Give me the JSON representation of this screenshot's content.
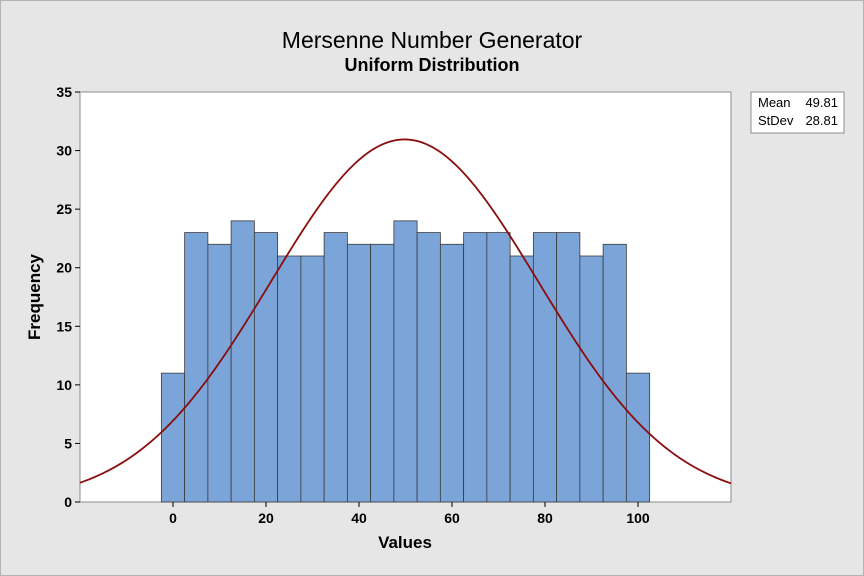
{
  "chart_data": {
    "type": "bar",
    "title": "Mersenne Number Generator",
    "subtitle": "Uniform Distribution",
    "xlabel": "Values",
    "ylabel": "Frequency",
    "xlim": [
      -20,
      120
    ],
    "ylim": [
      0,
      35
    ],
    "xticks": [
      0,
      20,
      40,
      60,
      80,
      100
    ],
    "yticks": [
      0,
      5,
      10,
      15,
      20,
      25,
      30,
      35
    ],
    "bin_width": 5,
    "bins": [
      {
        "start": -2.5,
        "end": 2.5,
        "count": 11
      },
      {
        "start": 2.5,
        "end": 7.5,
        "count": 23
      },
      {
        "start": 7.5,
        "end": 12.5,
        "count": 22
      },
      {
        "start": 12.5,
        "end": 17.5,
        "count": 24
      },
      {
        "start": 17.5,
        "end": 22.5,
        "count": 23
      },
      {
        "start": 22.5,
        "end": 27.5,
        "count": 21
      },
      {
        "start": 27.5,
        "end": 32.5,
        "count": 21
      },
      {
        "start": 32.5,
        "end": 37.5,
        "count": 23
      },
      {
        "start": 37.5,
        "end": 42.5,
        "count": 22
      },
      {
        "start": 42.5,
        "end": 47.5,
        "count": 22
      },
      {
        "start": 47.5,
        "end": 52.5,
        "count": 24
      },
      {
        "start": 52.5,
        "end": 57.5,
        "count": 23
      },
      {
        "start": 57.5,
        "end": 62.5,
        "count": 22
      },
      {
        "start": 62.5,
        "end": 67.5,
        "count": 23
      },
      {
        "start": 67.5,
        "end": 72.5,
        "count": 23
      },
      {
        "start": 72.5,
        "end": 77.5,
        "count": 21
      },
      {
        "start": 77.5,
        "end": 82.5,
        "count": 23
      },
      {
        "start": 82.5,
        "end": 87.5,
        "count": 23
      },
      {
        "start": 87.5,
        "end": 92.5,
        "count": 21
      },
      {
        "start": 92.5,
        "end": 97.5,
        "count": 22
      },
      {
        "start": 97.5,
        "end": 102.5,
        "count": 11
      }
    ],
    "fit_curve": {
      "type": "normal",
      "mean": 49.81,
      "stdev": 28.81,
      "peak": 30.95
    },
    "stats_box": {
      "position": "top-right",
      "mean_label": "Mean",
      "mean_value": "49.81",
      "stdev_label": "StDev",
      "stdev_value": "28.81"
    },
    "grid": false,
    "colors": {
      "bar_fill": "#7ba4d9",
      "bar_stroke": "#3b3b3b",
      "curve": "#8b0d0d",
      "plot_bg": "#ffffff",
      "page_bg": "#e6e6e6"
    }
  }
}
